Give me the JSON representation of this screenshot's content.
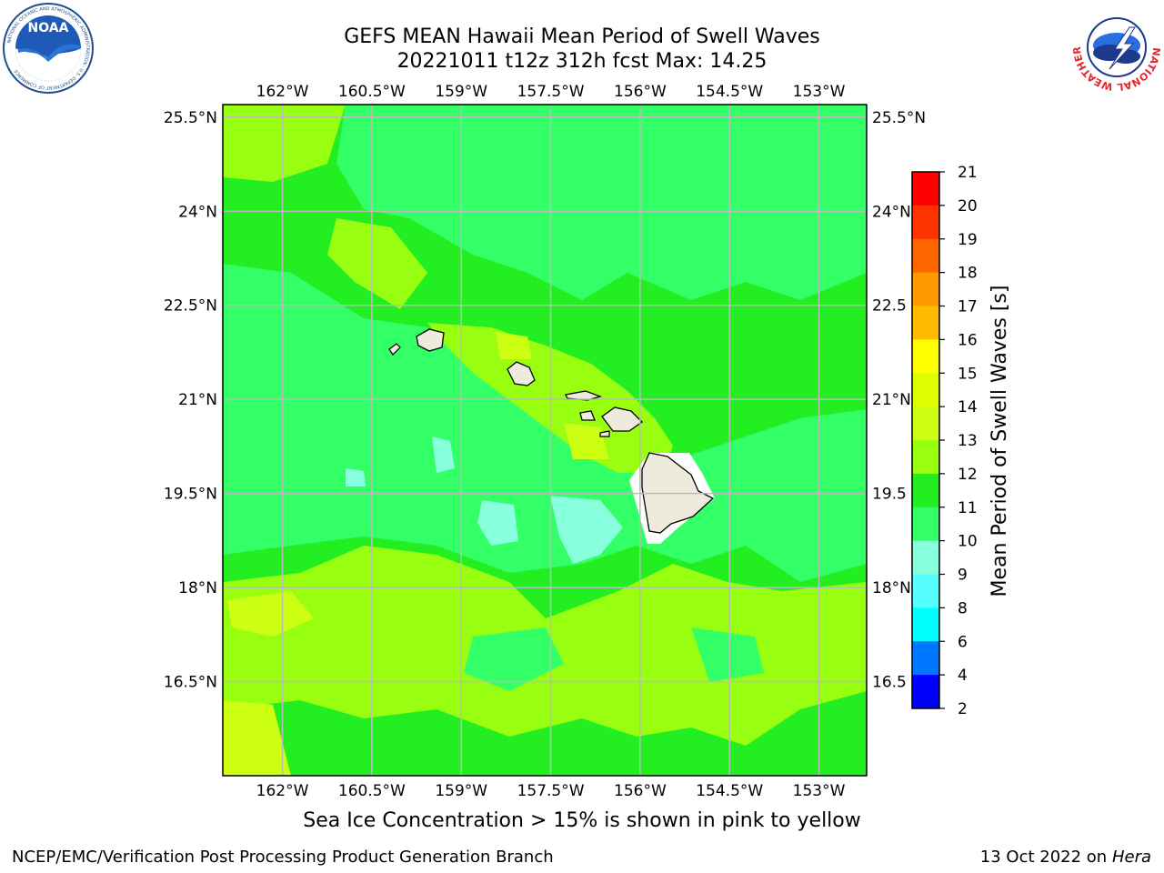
{
  "header": {
    "title_line1": "GEFS MEAN Hawaii Mean Period of Swell Waves",
    "title_line2": "20221011 t12z 312h fcst   Max: 14.25"
  },
  "logos": {
    "left": "NOAA",
    "left_ring": "NATIONAL OCEANIC AND ATMOSPHERIC ADMINISTRATION · U.S. DEPARTMENT OF COMMERCE",
    "right_ring": "NATIONAL WEATHER SERVICE"
  },
  "map": {
    "lon_labels": [
      "162°W",
      "160.5°W",
      "159°W",
      "157.5°W",
      "156°W",
      "154.5°W",
      "153°W"
    ],
    "lat_labels": [
      "25.5°N",
      "24°N",
      "22.5°N",
      "21°N",
      "19.5°N",
      "18°N",
      "16.5°N"
    ],
    "lat_labels_right": [
      "25.5°N",
      "24°N",
      "22.5",
      "21°N",
      "19.5",
      "18°N",
      "16.5"
    ],
    "lon_range": [
      -163.0,
      -152.2
    ],
    "lat_range": [
      15.0,
      25.7
    ],
    "grid": true,
    "field_colors": {
      "period_10_11": "#33ff66",
      "period_11_12": "#22ee22",
      "period_12_13": "#99ff11",
      "period_13_14": "#ccff11",
      "period_14_15": "#ffff00",
      "period_9_10": "#88ffdd",
      "land": "#eeebdd"
    }
  },
  "colorbar": {
    "label": "Mean Period of Swell Waves [s]",
    "ticks": [
      "21",
      "20",
      "19",
      "18",
      "17",
      "16",
      "15",
      "14",
      "13",
      "12",
      "11",
      "10",
      "9",
      "8",
      "6",
      "4",
      "2"
    ],
    "colors": [
      "#ff0000",
      "#ff3300",
      "#ff6600",
      "#ff9900",
      "#ffbb00",
      "#ffff00",
      "#ddff00",
      "#ccff11",
      "#99ff11",
      "#22ee22",
      "#33ff66",
      "#88ffdd",
      "#55ffff",
      "#00ffff",
      "#0077ff",
      "#0000ff"
    ]
  },
  "caption": "Sea Ice Concentration > 15% is shown in pink to yellow",
  "footer": {
    "left": "NCEP/EMC/Verification Post Processing Product Generation Branch",
    "right_date": "13 Oct 2022 on ",
    "right_host": "Hera"
  }
}
